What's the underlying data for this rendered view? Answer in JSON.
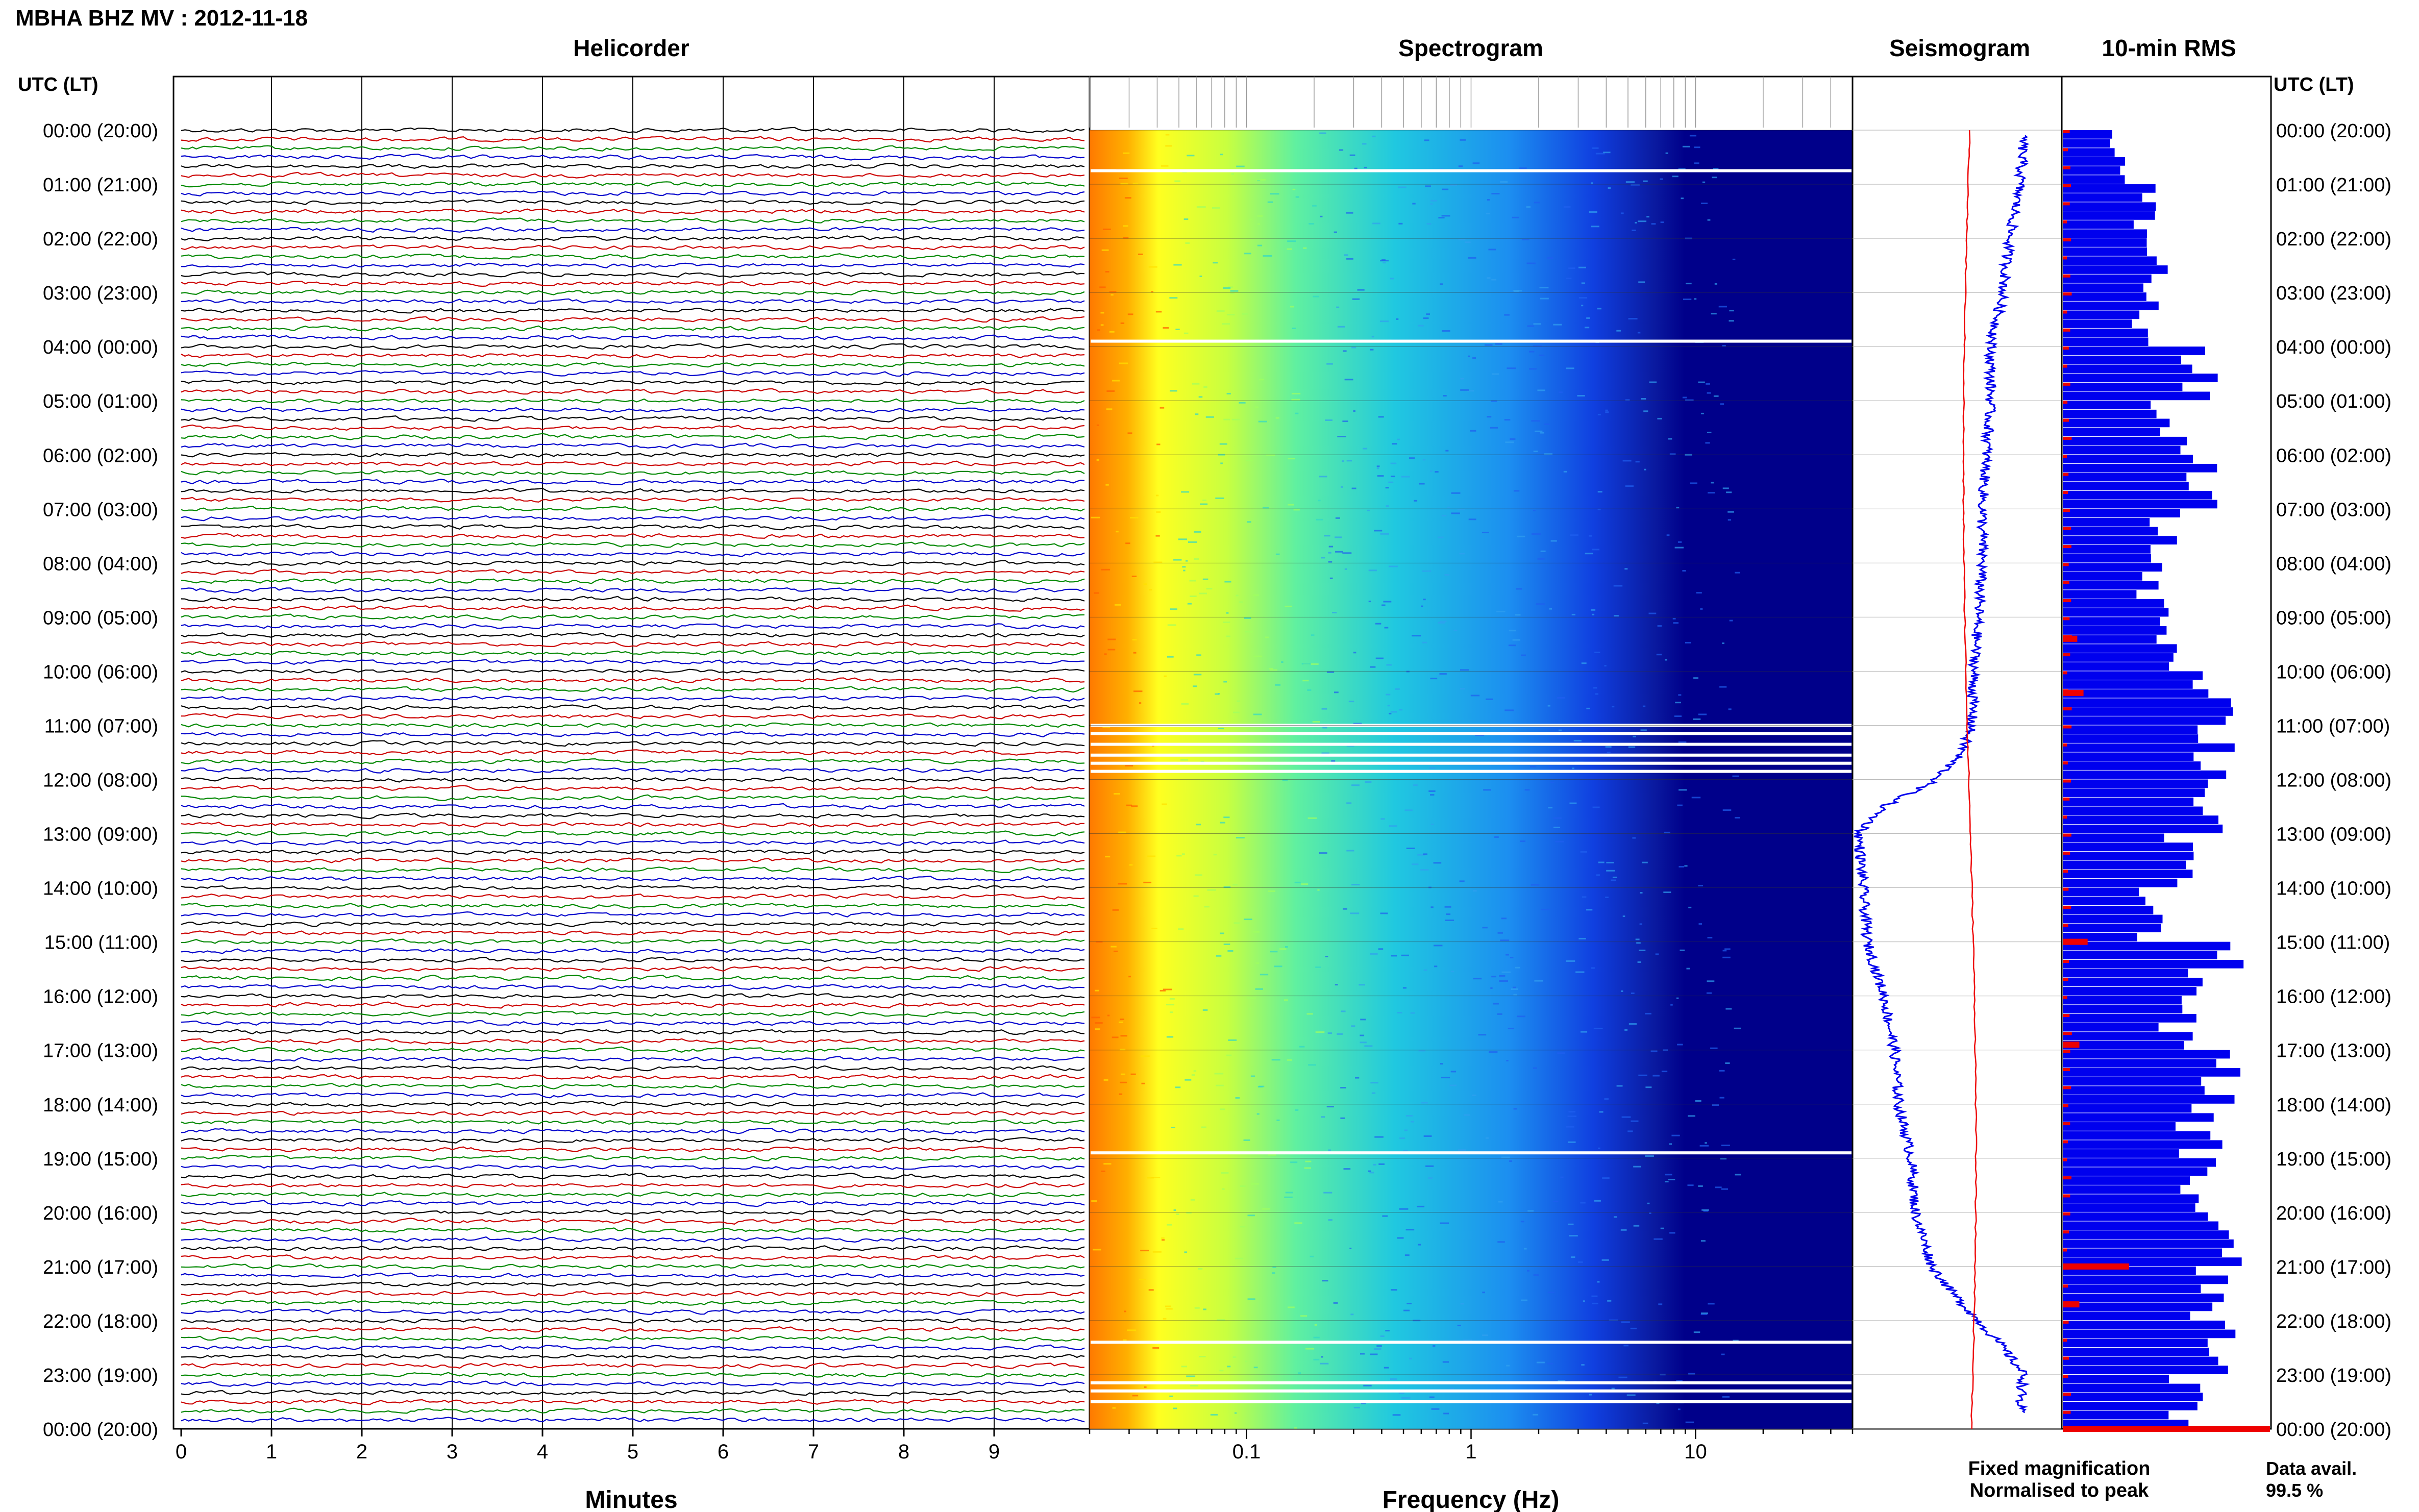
{
  "header": {
    "station_title": "MBHA BHZ MV : 2012-11-18"
  },
  "panels": {
    "helicorder_title": "Helicorder",
    "spectrogram_title": "Spectrogram",
    "seismogram_title": "Seismogram",
    "rms_title": "10-min RMS"
  },
  "axis": {
    "utc_label_left": "UTC (LT)",
    "utc_label_right": "UTC (LT)",
    "minutes_label": "Minutes",
    "frequency_label": "Frequency (Hz)"
  },
  "legend": {
    "fixed": "Fixed magnification",
    "normalised": "Normalised to peak",
    "fixed_color": "#0000ee",
    "normalised_color": "#ee0000"
  },
  "availability": {
    "label": "Data avail.",
    "value": "99.5 %"
  },
  "chart_data": {
    "type": "heatmap",
    "time_rows": [
      "00:00 (20:00)",
      "01:00 (21:00)",
      "02:00 (22:00)",
      "03:00 (23:00)",
      "04:00 (00:00)",
      "05:00 (01:00)",
      "06:00 (02:00)",
      "07:00 (03:00)",
      "08:00 (04:00)",
      "09:00 (05:00)",
      "10:00 (06:00)",
      "11:00 (07:00)",
      "12:00 (08:00)",
      "13:00 (09:00)",
      "14:00 (10:00)",
      "15:00 (11:00)",
      "16:00 (12:00)",
      "17:00 (13:00)",
      "18:00 (14:00)",
      "19:00 (15:00)",
      "20:00 (16:00)",
      "21:00 (17:00)",
      "22:00 (18:00)",
      "23:00 (19:00)",
      "00:00 (20:00)"
    ],
    "helicorder": {
      "x_ticks": [
        "0",
        "1",
        "2",
        "3",
        "4",
        "5",
        "6",
        "7",
        "8",
        "9"
      ],
      "xlim": [
        0,
        10
      ],
      "trace_colors": [
        "#000000",
        "#cc0000",
        "#008800",
        "#0000cc"
      ]
    },
    "spectrogram": {
      "x_ticks": [
        {
          "value": 0.1,
          "label": "0.1"
        },
        {
          "value": 1,
          "label": "1"
        },
        {
          "value": 10,
          "label": "10"
        }
      ],
      "xlim": [
        0.02,
        50
      ],
      "scale": "log",
      "gap_hours": [
        0.75,
        3.9,
        11.0,
        11.15,
        11.35,
        11.55,
        11.7,
        11.85,
        18.9,
        22.4,
        23.15,
        23.3,
        23.5
      ]
    },
    "rms_hourly": [
      0.3,
      0.42,
      0.48,
      0.43,
      0.68,
      0.55,
      0.7,
      0.52,
      0.47,
      0.58,
      0.82,
      0.8,
      0.78,
      0.58,
      0.46,
      0.8,
      0.6,
      0.78,
      0.72,
      0.7,
      0.8,
      0.78,
      0.76,
      0.66,
      1.0
    ],
    "rms_spikes": [
      {
        "hour": 9.4,
        "value": 0.07
      },
      {
        "hour": 10.4,
        "value": 0.1
      },
      {
        "hour": 15.0,
        "value": 0.12
      },
      {
        "hour": 16.9,
        "value": 0.08
      },
      {
        "hour": 21.0,
        "value": 0.32
      },
      {
        "hour": 21.7,
        "value": 0.08
      },
      {
        "hour": 24.0,
        "value": 1.0
      }
    ],
    "seismogram_envelope": [
      [
        0,
        0.82
      ],
      [
        1,
        0.8
      ],
      [
        2,
        0.75
      ],
      [
        3,
        0.72
      ],
      [
        4,
        0.66
      ],
      [
        5,
        0.66
      ],
      [
        6,
        0.64
      ],
      [
        7,
        0.62
      ],
      [
        8,
        0.62
      ],
      [
        9,
        0.6
      ],
      [
        10,
        0.58
      ],
      [
        11,
        0.57
      ],
      [
        11.5,
        0.52
      ],
      [
        12,
        0.4
      ],
      [
        12.5,
        0.15
      ],
      [
        13,
        0.03
      ],
      [
        14,
        0.05
      ],
      [
        15,
        0.07
      ],
      [
        16,
        0.15
      ],
      [
        17,
        0.2
      ],
      [
        18,
        0.22
      ],
      [
        19,
        0.28
      ],
      [
        20,
        0.3
      ],
      [
        21,
        0.38
      ],
      [
        21.5,
        0.48
      ],
      [
        22,
        0.6
      ],
      [
        22.5,
        0.72
      ],
      [
        23,
        0.82
      ],
      [
        23.5,
        0.8
      ]
    ]
  }
}
